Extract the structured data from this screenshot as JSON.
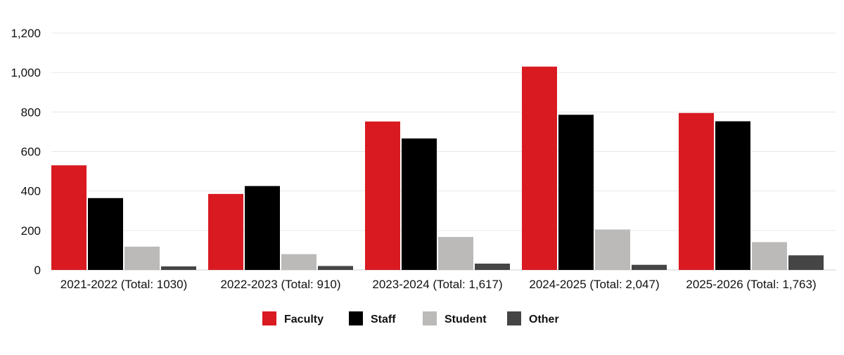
{
  "chart_data": {
    "type": "bar",
    "title": "",
    "xlabel": "",
    "ylabel": "",
    "ylim": [
      0,
      1200
    ],
    "yticks": [
      0,
      200,
      400,
      600,
      800,
      1000,
      1200
    ],
    "ytick_labels": [
      "0",
      "200",
      "400",
      "600",
      "800",
      "1,000",
      "1,200"
    ],
    "grid": true,
    "legend_position": "bottom",
    "categories": [
      "2021-2022 (Total: 1030)",
      "2022-2023 (Total: 910)",
      "2023-2024 (Total: 1,617)",
      "2024-2025 (Total: 2,047)",
      "2025-2026 (Total: 1,763)"
    ],
    "series": [
      {
        "name": "Faculty",
        "color": "#d91a21",
        "values": [
          530,
          385,
          752,
          1030,
          795
        ]
      },
      {
        "name": "Staff",
        "color": "#000000",
        "values": [
          364,
          425,
          666,
          786,
          753
        ]
      },
      {
        "name": "Student",
        "color": "#bbbab8",
        "values": [
          118,
          80,
          167,
          205,
          141
        ]
      },
      {
        "name": "Other",
        "color": "#454545",
        "values": [
          18,
          20,
          32,
          26,
          74
        ]
      }
    ]
  }
}
